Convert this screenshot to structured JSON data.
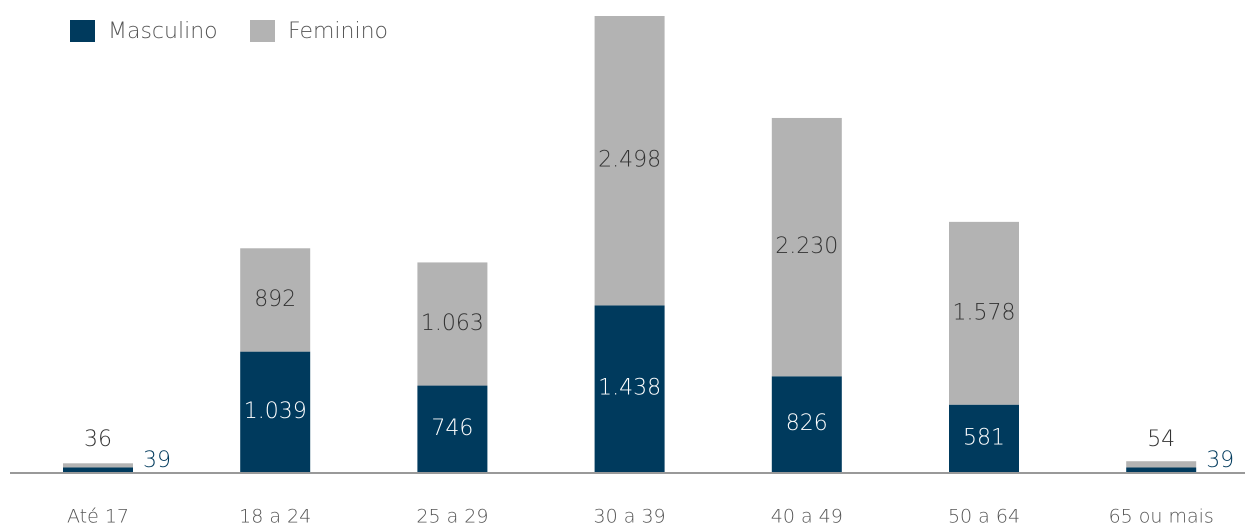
{
  "chart_data": {
    "type": "stacked_bar",
    "categories": [
      "Até 17",
      "18 a 24",
      "25 a 29",
      "30 a 39",
      "40 a 49",
      "50 a 64",
      "65 ou mais"
    ],
    "series": [
      {
        "name": "Masculino",
        "color": "#003a5d",
        "values": [
          39,
          1039,
          746,
          1438,
          826,
          581,
          39
        ],
        "value_labels": [
          "39",
          "1.039",
          "746",
          "1.438",
          "826",
          "581",
          "39"
        ]
      },
      {
        "name": "Feminino",
        "color": "#b3b3b3",
        "values": [
          36,
          892,
          1063,
          2498,
          2230,
          1578,
          54
        ],
        "value_labels": [
          "36",
          "892",
          "1.063",
          "2.498",
          "2.230",
          "1.578",
          "54"
        ]
      }
    ],
    "legend": "top-left"
  }
}
